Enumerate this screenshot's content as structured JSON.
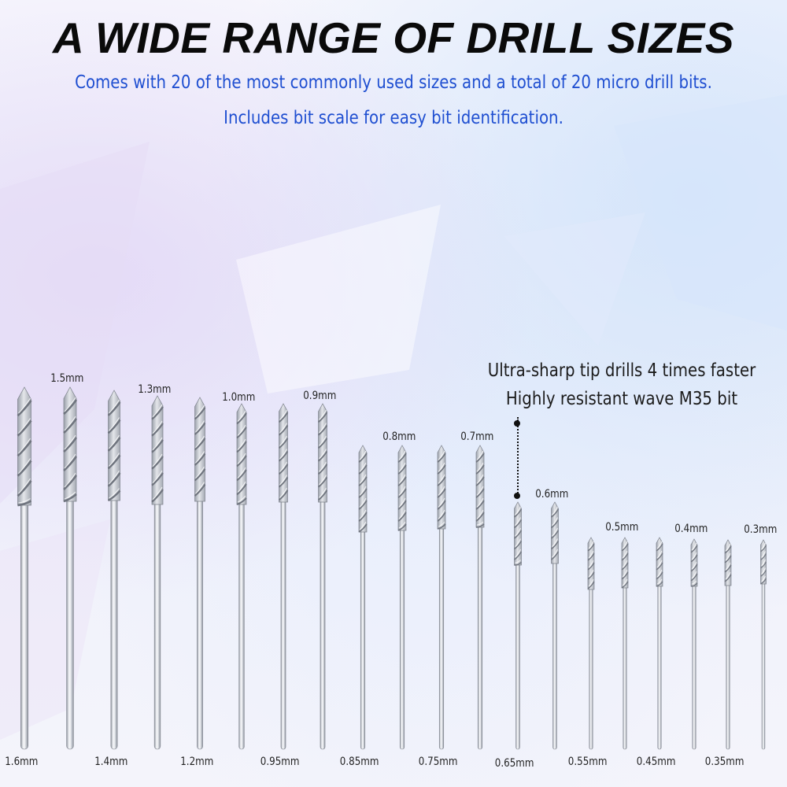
{
  "title": "A WIDE RANGE OF DRILL SIZES",
  "subtitle": {
    "line1": "Comes with 20 of the most commonly used sizes and a total of 20 micro drill bits.",
    "line2": "Includes bit scale for easy bit identification."
  },
  "feature": {
    "line1": "Ultra-sharp tip drills 4 times faster",
    "line2": "Highly resistant wave M35 bit"
  },
  "colors": {
    "title": "#0a0a0a",
    "subtitle": "#1f4fd1",
    "bit_light": "#f2f3f6",
    "bit_mid": "#c9ccd3",
    "bit_dark": "#8d929c"
  },
  "icons": {
    "drill_bit": "drill-bit-icon",
    "callout": "dotted-callout-line"
  },
  "drill_bits": [
    {
      "size": "1.6mm"
    },
    {
      "size": "1.5mm"
    },
    {
      "size": "1.4mm"
    },
    {
      "size": "1.3mm"
    },
    {
      "size": "1.2mm"
    },
    {
      "size": "1.0mm"
    },
    {
      "size": "0.95mm"
    },
    {
      "size": "0.9mm"
    },
    {
      "size": "0.85mm"
    },
    {
      "size": "0.8mm"
    },
    {
      "size": "0.75mm"
    },
    {
      "size": "0.7mm"
    },
    {
      "size": "0.65mm"
    },
    {
      "size": "0.6mm"
    },
    {
      "size": "0.55mm"
    },
    {
      "size": "0.5mm"
    },
    {
      "size": "0.45mm"
    },
    {
      "size": "0.4mm"
    },
    {
      "size": "0.35mm"
    },
    {
      "size": "0.3mm"
    }
  ]
}
